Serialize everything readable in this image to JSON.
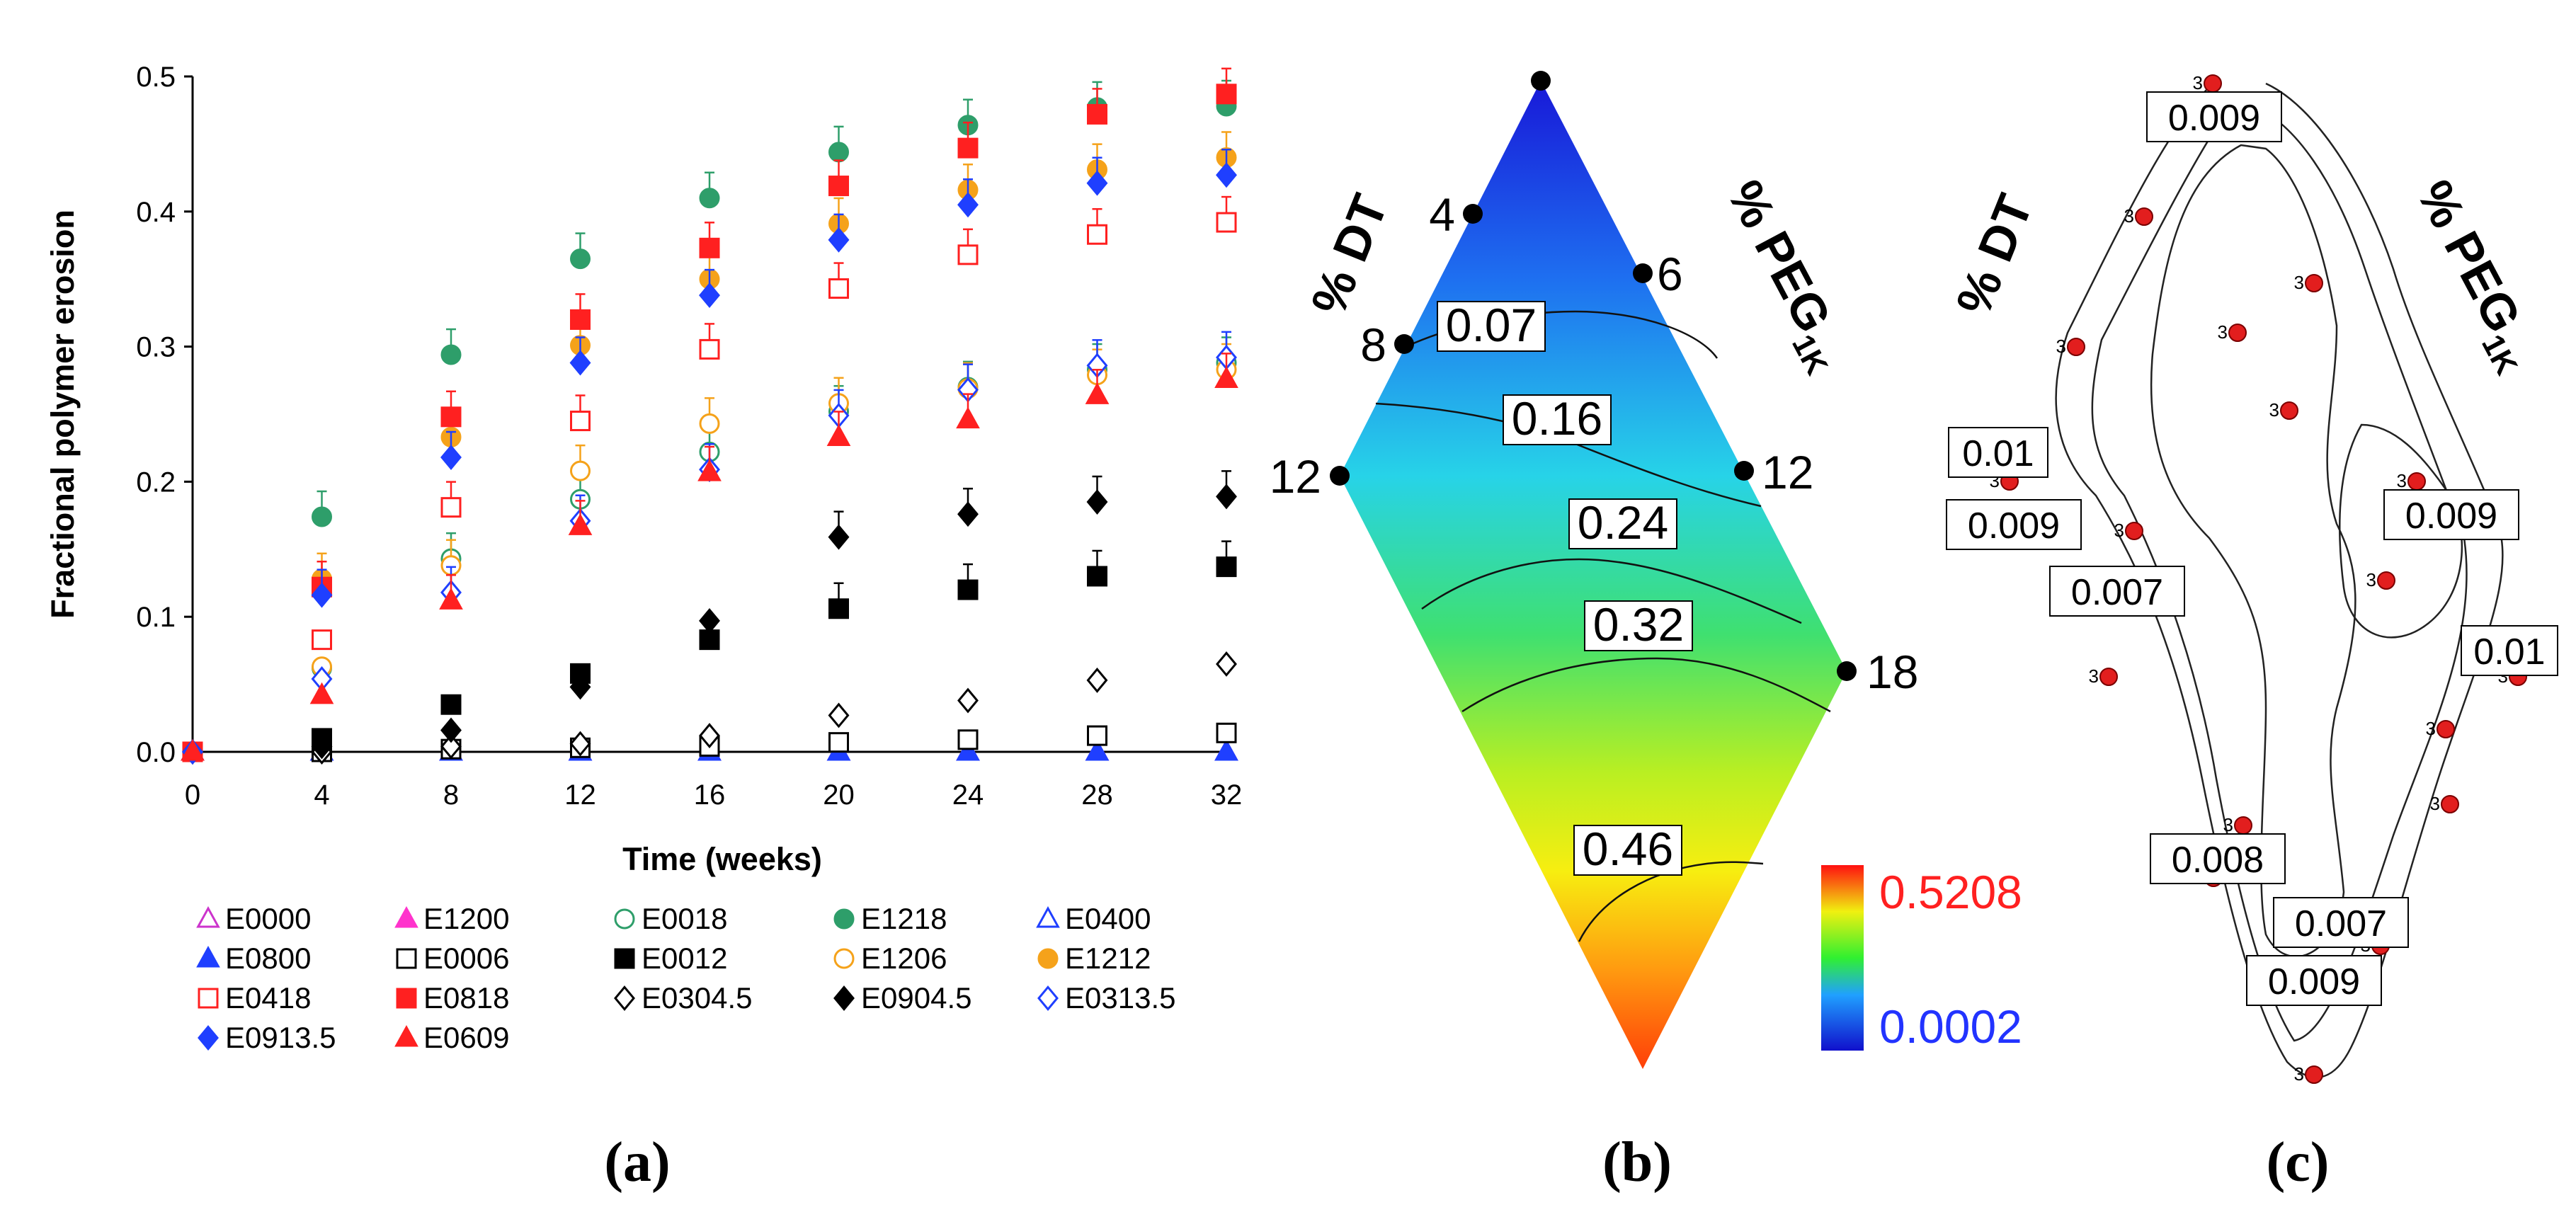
{
  "chart_data": [
    {
      "panel": "(a)",
      "type": "scatter",
      "xlabel": "Time (weeks)",
      "ylabel": "Fractional polymer erosion",
      "xlim": [
        0,
        32
      ],
      "ylim": [
        0,
        0.5
      ],
      "x_ticks": [
        "0",
        "4",
        "8",
        "12",
        "16",
        "20",
        "24",
        "28",
        "32"
      ],
      "y_ticks": [
        "0.0",
        "0.1",
        "0.2",
        "0.3",
        "0.4",
        "0.5"
      ],
      "x": [
        0,
        4,
        8,
        12,
        16,
        20,
        24,
        28,
        32
      ],
      "legend_position": "bottom",
      "series": [
        {
          "name": "E0000",
          "color": "#cc33cc",
          "marker": "triangle",
          "filled": false,
          "values": [
            0,
            0,
            0,
            0,
            0,
            0,
            0,
            0,
            0
          ]
        },
        {
          "name": "E1200",
          "color": "#ff33cc",
          "marker": "triangle",
          "filled": true,
          "values": [
            0,
            0,
            0,
            0,
            0,
            0,
            0,
            0,
            0
          ]
        },
        {
          "name": "E0018",
          "color": "#2e9e6a",
          "marker": "circle",
          "filled": false,
          "values": [
            0,
            0.062,
            0.143,
            0.187,
            0.222,
            0.252,
            0.27,
            0.283,
            0.288
          ]
        },
        {
          "name": "E1218",
          "color": "#2e9e6a",
          "marker": "circle",
          "filled": true,
          "values": [
            0,
            0.174,
            0.294,
            0.365,
            0.41,
            0.444,
            0.464,
            0.477,
            0.478
          ]
        },
        {
          "name": "E0400",
          "color": "#1f3fff",
          "marker": "triangle",
          "filled": false,
          "values": [
            0,
            0,
            0,
            0,
            0,
            0,
            0,
            0,
            0
          ]
        },
        {
          "name": "E0800",
          "color": "#1f3fff",
          "marker": "triangle",
          "filled": true,
          "values": [
            0,
            0,
            0,
            0,
            0,
            0,
            0,
            0,
            0
          ]
        },
        {
          "name": "E0006",
          "color": "#000000",
          "marker": "square",
          "filled": false,
          "values": [
            0,
            0,
            0.002,
            0.003,
            0.004,
            0.007,
            0.009,
            0.012,
            0.014
          ]
        },
        {
          "name": "E0012",
          "color": "#000000",
          "marker": "square",
          "filled": true,
          "values": [
            0,
            0.01,
            0.035,
            0.058,
            0.083,
            0.106,
            0.12,
            0.13,
            0.137
          ]
        },
        {
          "name": "E1206",
          "color": "#f5a21a",
          "marker": "circle",
          "filled": false,
          "values": [
            0,
            0.063,
            0.138,
            0.208,
            0.243,
            0.258,
            0.269,
            0.279,
            0.283
          ]
        },
        {
          "name": "E1212",
          "color": "#f5a21a",
          "marker": "circle",
          "filled": true,
          "values": [
            0,
            0.128,
            0.233,
            0.301,
            0.35,
            0.391,
            0.416,
            0.431,
            0.44
          ]
        },
        {
          "name": "E0418",
          "color": "#ff2020",
          "marker": "square",
          "filled": false,
          "values": [
            0,
            0.083,
            0.181,
            0.245,
            0.298,
            0.343,
            0.368,
            0.383,
            0.392
          ]
        },
        {
          "name": "E0818",
          "color": "#ff2020",
          "marker": "square",
          "filled": true,
          "values": [
            0,
            0.122,
            0.248,
            0.32,
            0.373,
            0.419,
            0.447,
            0.472,
            0.487
          ]
        },
        {
          "name": "E0304.5",
          "color": "#000000",
          "marker": "diamond",
          "filled": false,
          "values": [
            0,
            0,
            0.004,
            0.006,
            0.012,
            0.027,
            0.038,
            0.053,
            0.065
          ]
        },
        {
          "name": "E0904.5",
          "color": "#000000",
          "marker": "diamond",
          "filled": true,
          "values": [
            0,
            0.004,
            0.016,
            0.048,
            0.097,
            0.159,
            0.176,
            0.185,
            0.189
          ]
        },
        {
          "name": "E0313.5",
          "color": "#1f3fff",
          "marker": "diamond",
          "filled": false,
          "values": [
            0,
            0.054,
            0.118,
            0.171,
            0.209,
            0.249,
            0.268,
            0.286,
            0.292
          ]
        },
        {
          "name": "E0913.5",
          "color": "#1f3fff",
          "marker": "diamond",
          "filled": true,
          "values": [
            0,
            0.116,
            0.218,
            0.288,
            0.338,
            0.379,
            0.405,
            0.421,
            0.427
          ]
        },
        {
          "name": "E0609",
          "color": "#ff2020",
          "marker": "triangle",
          "filled": true,
          "values": [
            0,
            0.042,
            0.112,
            0.167,
            0.207,
            0.233,
            0.246,
            0.264,
            0.276
          ]
        }
      ]
    },
    {
      "panel": "(b)",
      "type": "heatmap",
      "axis_left_label": "% DT",
      "axis_right_label": "% PEG",
      "axis_right_sub": "1K",
      "dt_ticks": [
        "4",
        "8",
        "12"
      ],
      "peg_ticks": [
        "6",
        "12",
        "18"
      ],
      "contour_labels": [
        "0.07",
        "0.16",
        "0.24",
        "0.32",
        "0.46"
      ],
      "colorbar": {
        "max": "0.5208",
        "min": "0.0002",
        "max_color": "#ff2020",
        "min_color": "#2233ff"
      }
    },
    {
      "panel": "(c)",
      "type": "heatmap",
      "axis_left_label": "% DT",
      "axis_right_label": "% PEG",
      "axis_right_sub": "1K",
      "contour_labels": [
        "0.009",
        "0.01",
        "0.009",
        "0.007",
        "0.009",
        "0.01",
        "0.008",
        "0.007",
        "0.009"
      ],
      "point_label": "3"
    }
  ]
}
